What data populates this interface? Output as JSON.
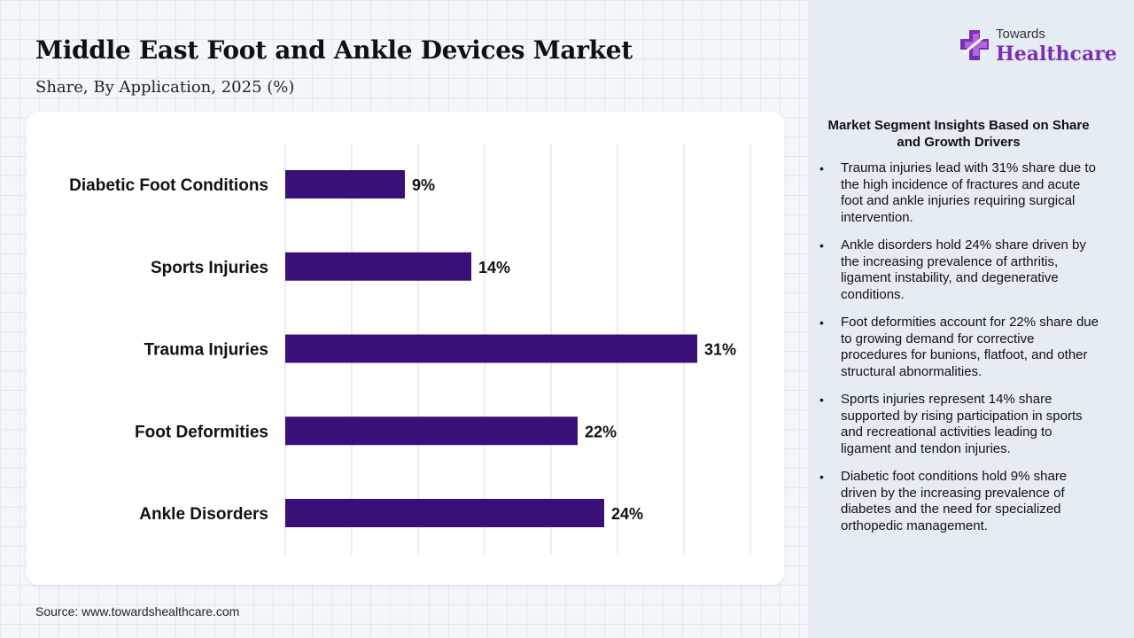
{
  "header": {
    "title": "Middle East Foot and Ankle Devices Market",
    "subtitle": "Share, By Application, 2025 (%)"
  },
  "logo": {
    "line1": "Towards",
    "line2": "Healthcare",
    "icon": "medical-cross-icon"
  },
  "source": "Source: www.towardshealthcare.com",
  "colors": {
    "bar": "#3a1078",
    "logo_accent": "#7a2fb5",
    "gridline": "#d9d9d9"
  },
  "chart_data": {
    "type": "bar",
    "orientation": "horizontal",
    "categories": [
      "Diabetic Foot Conditions",
      "Sports Injuries",
      "Trauma Injuries",
      "Foot Deformities",
      "Ankle Disorders"
    ],
    "values": [
      9,
      14,
      31,
      22,
      24
    ],
    "value_labels": [
      "9%",
      "14%",
      "31%",
      "22%",
      "24%"
    ],
    "xlim": [
      0,
      35
    ],
    "grid": true
  },
  "insights": {
    "title": "Market Segment Insights Based on Share and Growth Drivers",
    "items": [
      "Trauma injuries lead with 31% share due to the high incidence of fractures and acute foot and ankle injuries requiring surgical intervention.",
      "Ankle disorders hold 24% share driven by the increasing prevalence of arthritis, ligament instability, and degenerative conditions.",
      "Foot deformities account for 22% share due to growing demand for corrective procedures for bunions, flatfoot, and other structural abnormalities.",
      "Sports injuries represent 14% share supported by rising participation in sports and recreational activities leading to ligament and tendon injuries.",
      "Diabetic foot conditions hold 9% share driven by the increasing prevalence of diabetes and the need for specialized orthopedic management."
    ]
  }
}
